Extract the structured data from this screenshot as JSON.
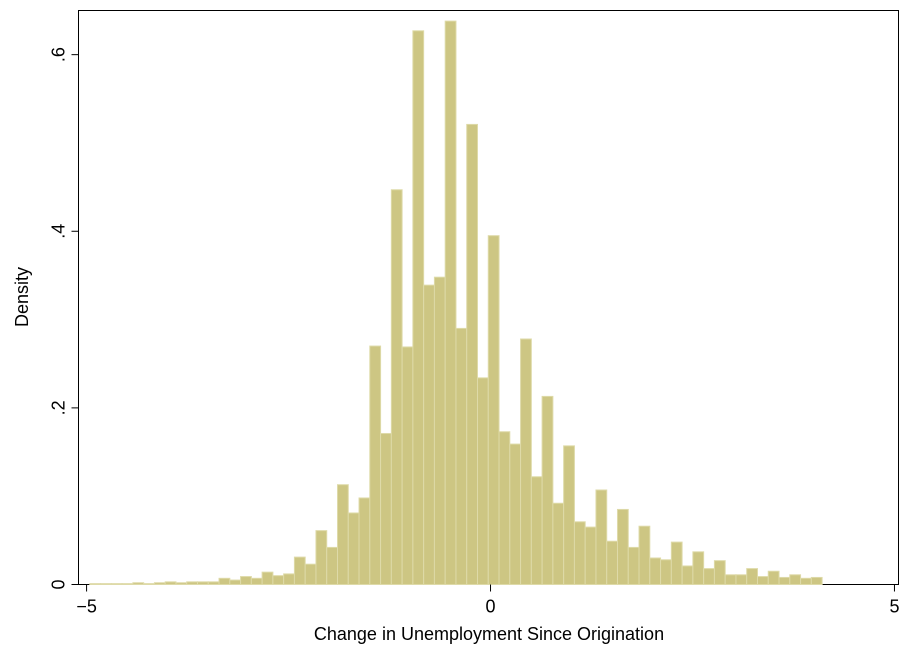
{
  "chart_data": {
    "type": "bar",
    "xlabel": "Change in Unemployment Since Origination",
    "ylabel": "Density",
    "xlim": [
      -5.1,
      5.05
    ],
    "ylim": [
      0,
      0.65
    ],
    "x_ticks": [
      {
        "value": -5,
        "label": "−5"
      },
      {
        "value": 0,
        "label": "0"
      },
      {
        "value": 5,
        "label": "5"
      }
    ],
    "y_ticks": [
      {
        "value": 0,
        "label": "0"
      },
      {
        "value": 0.2,
        "label": ".2"
      },
      {
        "value": 0.4,
        "label": ".4"
      },
      {
        "value": 0.6,
        "label": ".6"
      }
    ],
    "grid": false,
    "bar_color": "#cdc683",
    "bar_edge_color": "#dedaa8",
    "bin_width": 0.1333,
    "bins_start": -4.96,
    "values": [
      0.001,
      0.001,
      0.001,
      0.001,
      0.002,
      0.001,
      0.002,
      0.003,
      0.002,
      0.003,
      0.003,
      0.003,
      0.007,
      0.005,
      0.009,
      0.007,
      0.014,
      0.01,
      0.012,
      0.031,
      0.023,
      0.061,
      0.042,
      0.113,
      0.081,
      0.098,
      0.27,
      0.171,
      0.447,
      0.269,
      0.627,
      0.339,
      0.348,
      0.638,
      0.29,
      0.521,
      0.234,
      0.395,
      0.173,
      0.159,
      0.278,
      0.122,
      0.213,
      0.092,
      0.157,
      0.071,
      0.065,
      0.107,
      0.049,
      0.085,
      0.042,
      0.066,
      0.03,
      0.028,
      0.048,
      0.021,
      0.037,
      0.018,
      0.027,
      0.011,
      0.011,
      0.018,
      0.009,
      0.015,
      0.008,
      0.011,
      0.007,
      0.008
    ]
  }
}
